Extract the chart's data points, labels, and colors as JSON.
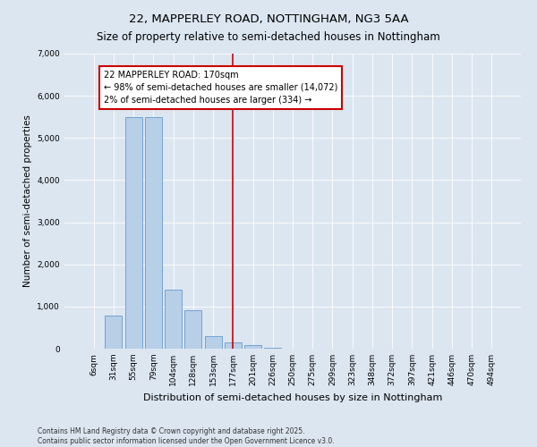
{
  "title": "22, MAPPERLEY ROAD, NOTTINGHAM, NG3 5AA",
  "subtitle": "Size of property relative to semi-detached houses in Nottingham",
  "xlabel": "Distribution of semi-detached houses by size in Nottingham",
  "ylabel": "Number of semi-detached properties",
  "categories": [
    "6sqm",
    "31sqm",
    "55sqm",
    "79sqm",
    "104sqm",
    "128sqm",
    "153sqm",
    "177sqm",
    "201sqm",
    "226sqm",
    "250sqm",
    "275sqm",
    "299sqm",
    "323sqm",
    "348sqm",
    "372sqm",
    "397sqm",
    "421sqm",
    "446sqm",
    "470sqm",
    "494sqm"
  ],
  "values": [
    0,
    780,
    5500,
    5500,
    1400,
    920,
    300,
    150,
    80,
    30,
    10,
    0,
    0,
    0,
    0,
    0,
    0,
    0,
    0,
    0,
    0
  ],
  "bar_color": "#b8cfe8",
  "bar_edge_color": "#6699cc",
  "vline_x": 7,
  "vline_color": "#cc0000",
  "annotation_text": "22 MAPPERLEY ROAD: 170sqm\n← 98% of semi-detached houses are smaller (14,072)\n2% of semi-detached houses are larger (334) →",
  "annotation_box_color": "#ffffff",
  "annotation_box_edge": "#cc0000",
  "ylim": [
    0,
    7000
  ],
  "yticks": [
    0,
    1000,
    2000,
    3000,
    4000,
    5000,
    6000,
    7000
  ],
  "background_color": "#dce6f1",
  "plot_bg_color": "#dce6f1",
  "footer": "Contains HM Land Registry data © Crown copyright and database right 2025.\nContains public sector information licensed under the Open Government Licence v3.0.",
  "title_fontsize": 9.5,
  "xlabel_fontsize": 8,
  "ylabel_fontsize": 7.5,
  "tick_fontsize": 6.5,
  "annotation_fontsize": 7,
  "footer_fontsize": 5.5
}
